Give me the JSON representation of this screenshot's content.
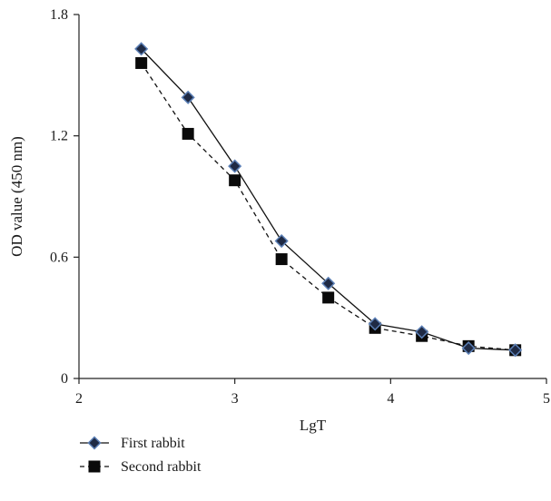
{
  "chart_data": {
    "type": "line",
    "xlabel": "LgT",
    "ylabel": "OD value (450 nm)",
    "xlim": [
      2,
      5
    ],
    "ylim": [
      0,
      1.8
    ],
    "x_ticks": [
      "2",
      "3",
      "4",
      "5"
    ],
    "y_ticks": [
      "0",
      "0.6",
      "1.2",
      "1.8"
    ],
    "grid": false,
    "legend_position": "bottom-left",
    "series": [
      {
        "name": "First rabbit",
        "marker": "diamond",
        "line_style": "solid",
        "marker_color": "#1f2a44",
        "marker_edge": "#5b7fb5",
        "x": [
          2.4,
          2.7,
          3.0,
          3.3,
          3.6,
          3.9,
          4.2,
          4.5,
          4.8
        ],
        "y": [
          1.63,
          1.39,
          1.05,
          0.68,
          0.47,
          0.27,
          0.23,
          0.15,
          0.14
        ]
      },
      {
        "name": "Second rabbit",
        "marker": "square",
        "line_style": "dashed",
        "marker_color": "#0a0a0a",
        "x": [
          2.4,
          2.7,
          3.0,
          3.3,
          3.6,
          3.9,
          4.2,
          4.5,
          4.8
        ],
        "y": [
          1.56,
          1.21,
          0.98,
          0.59,
          0.4,
          0.25,
          0.21,
          0.16,
          0.14
        ]
      }
    ]
  }
}
